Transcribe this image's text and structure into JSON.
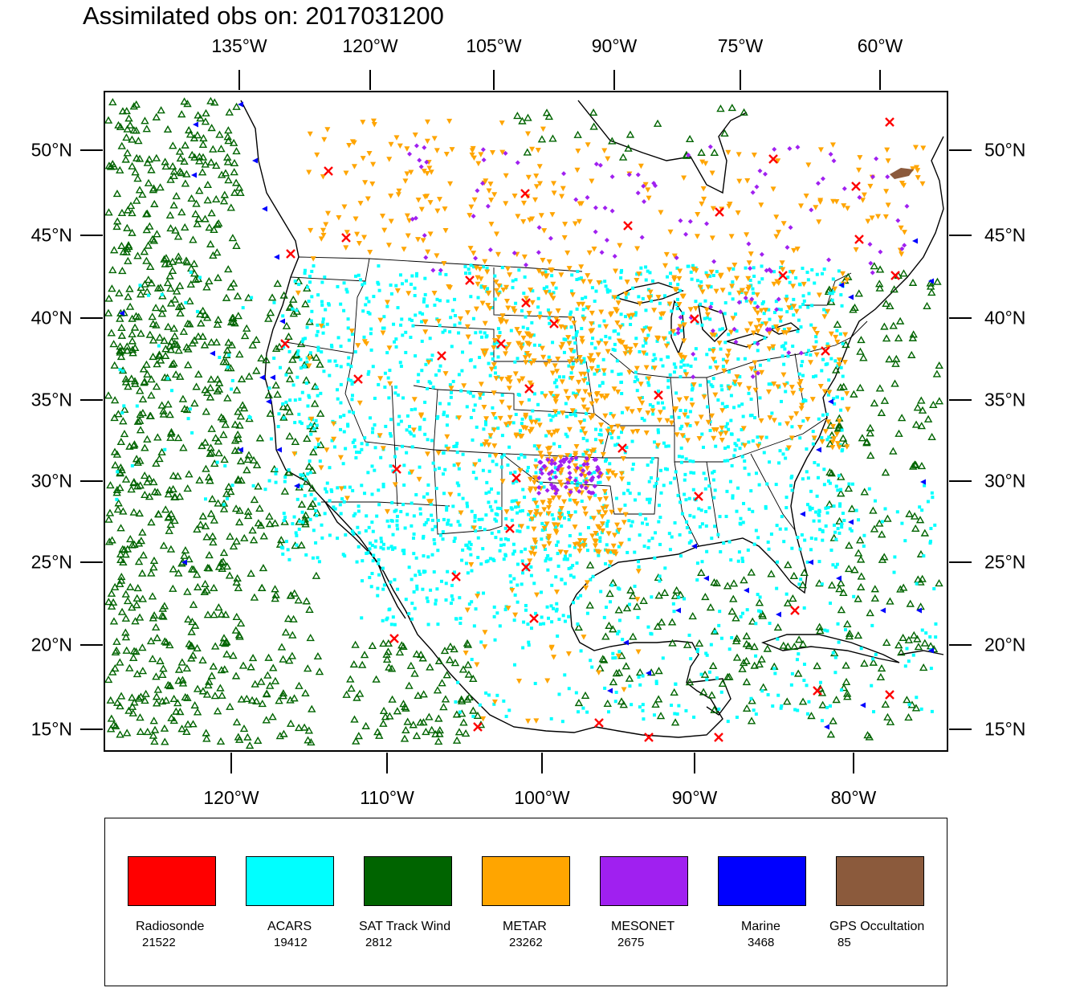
{
  "title": "Assimilated obs on: 2017031200",
  "axes": {
    "top_lon_labels": [
      "135°W",
      "120°W",
      "105°W",
      "90°W",
      "75°W",
      "60°W"
    ],
    "bottom_lon_labels": [
      "120°W",
      "110°W",
      "100°W",
      "90°W",
      "80°W"
    ],
    "lat_labels": [
      "50°N",
      "45°N",
      "40°N",
      "35°N",
      "30°N",
      "25°N",
      "20°N",
      "15°N"
    ]
  },
  "legend": [
    {
      "name": "Radiosonde",
      "count": "21522",
      "color": "#ff0000"
    },
    {
      "name": "ACARS",
      "count": "19412",
      "color": "#00ffff"
    },
    {
      "name": "SAT Track Wind",
      "count": "2812",
      "color": "#006400"
    },
    {
      "name": "METAR",
      "count": "23262",
      "color": "#ffa500"
    },
    {
      "name": "MESONET",
      "count": "2675",
      "color": "#a020f0"
    },
    {
      "name": "Marine",
      "count": "3468",
      "color": "#0000ff"
    },
    {
      "name": "GPS Occultation",
      "count": "85",
      "color": "#8b5a3c"
    }
  ],
  "markers": {
    "Radiosonde": "x-cross",
    "ACARS": "small-square",
    "SAT Track Wind": "hollow-triangle",
    "METAR": "down-triangle",
    "MESONET": "diamond",
    "Marine": "left-triangle",
    "GPS Occultation": "filled-patch"
  }
}
